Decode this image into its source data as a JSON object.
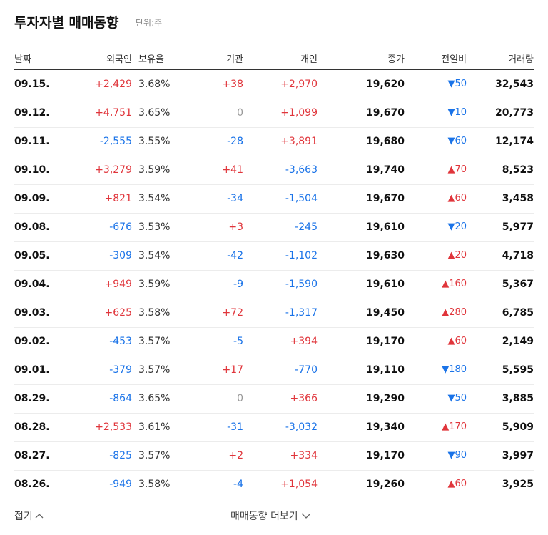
{
  "header": {
    "title": "투자자별 매매동향",
    "unit": "단위:주"
  },
  "table": {
    "columns": [
      "날짜",
      "외국인",
      "보유율",
      "기관",
      "개인",
      "종가",
      "전일비",
      "거래량"
    ],
    "rows": [
      [
        "09.15.",
        "+2,429",
        "3.68%",
        "+38",
        "+2,970",
        "19,620",
        "▼50",
        "32,543"
      ],
      [
        "09.12.",
        "+4,751",
        "3.65%",
        "0",
        "+1,099",
        "19,670",
        "▼10",
        "20,773"
      ],
      [
        "09.11.",
        "-2,555",
        "3.55%",
        "-28",
        "+3,891",
        "19,680",
        "▼60",
        "12,174"
      ],
      [
        "09.10.",
        "+3,279",
        "3.59%",
        "+41",
        "-3,663",
        "19,740",
        "▲70",
        "8,523"
      ],
      [
        "09.09.",
        "+821",
        "3.54%",
        "-34",
        "-1,504",
        "19,670",
        "▲60",
        "3,458"
      ],
      [
        "09.08.",
        "-676",
        "3.53%",
        "+3",
        "-245",
        "19,610",
        "▼20",
        "5,977"
      ],
      [
        "09.05.",
        "-309",
        "3.54%",
        "-42",
        "-1,102",
        "19,630",
        "▲20",
        "4,718"
      ],
      [
        "09.04.",
        "+949",
        "3.59%",
        "-9",
        "-1,590",
        "19,610",
        "▲160",
        "5,367"
      ],
      [
        "09.03.",
        "+625",
        "3.58%",
        "+72",
        "-1,317",
        "19,450",
        "▲280",
        "6,785"
      ],
      [
        "09.02.",
        "-453",
        "3.57%",
        "-5",
        "+394",
        "19,170",
        "▲60",
        "2,149"
      ],
      [
        "09.01.",
        "-379",
        "3.57%",
        "+17",
        "-770",
        "19,110",
        "▼180",
        "5,595"
      ],
      [
        "08.29.",
        "-864",
        "3.65%",
        "0",
        "+366",
        "19,290",
        "▼50",
        "3,885"
      ],
      [
        "08.28.",
        "+2,533",
        "3.61%",
        "-31",
        "-3,032",
        "19,340",
        "▲170",
        "5,909"
      ],
      [
        "08.27.",
        "-825",
        "3.57%",
        "+2",
        "+334",
        "19,170",
        "▼90",
        "3,997"
      ],
      [
        "08.26.",
        "-949",
        "3.58%",
        "-4",
        "+1,054",
        "19,260",
        "▲60",
        "3,925"
      ]
    ]
  },
  "footer": {
    "collapse": "접기",
    "more": "매매동향 더보기"
  }
}
